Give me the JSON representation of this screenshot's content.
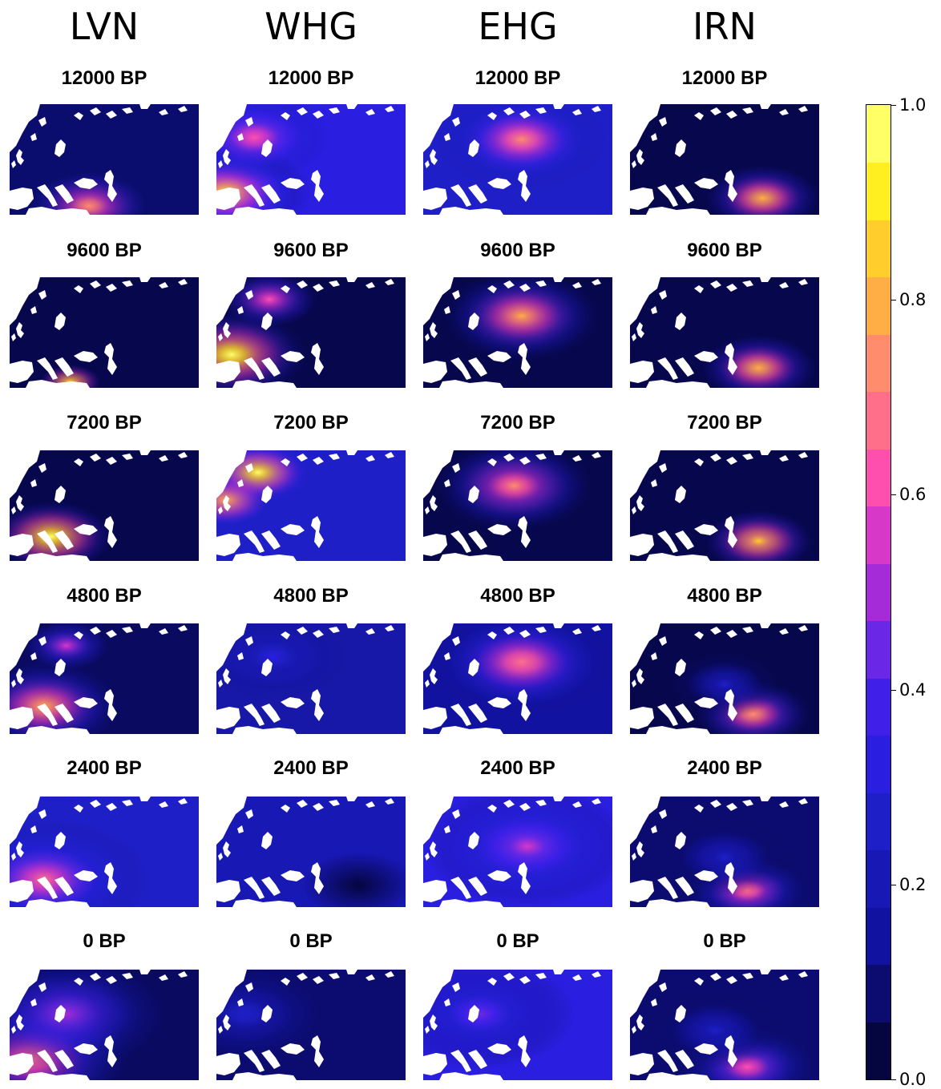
{
  "columns": [
    {
      "label": "LVN",
      "panels": [
        {
          "title": "12000 BP",
          "base": "#0b0d6e",
          "blobs": [
            [
              0.42,
              0.92,
              0.3,
              0.72,
              0.6
            ]
          ]
        },
        {
          "title": "9600 BP",
          "base": "#07074d",
          "blobs": [
            [
              0.32,
              0.95,
              0.16,
              0.9,
              0.55
            ]
          ]
        },
        {
          "title": "7200 BP",
          "base": "#07074d",
          "blobs": [
            [
              0.22,
              0.78,
              0.32,
              0.96,
              0.75
            ]
          ]
        },
        {
          "title": "4800 BP",
          "base": "#0a0a60",
          "blobs": [
            [
              0.18,
              0.75,
              0.42,
              0.78,
              0.85
            ],
            [
              0.3,
              0.2,
              0.22,
              0.55,
              0.55
            ]
          ]
        },
        {
          "title": "2400 BP",
          "base": "#1f1fc8",
          "blobs": [
            [
              0.18,
              0.75,
              0.55,
              0.65,
              0.95
            ]
          ]
        },
        {
          "title": "0 BP",
          "base": "#0a0a60",
          "blobs": [
            [
              0.12,
              0.8,
              0.55,
              0.7,
              0.95
            ],
            [
              0.3,
              0.4,
              0.55,
              0.5,
              0.8
            ]
          ]
        }
      ]
    },
    {
      "label": "WHG",
      "panels": [
        {
          "title": "12000 BP",
          "base": "#2a1ee0",
          "blobs": [
            [
              0.05,
              0.8,
              0.45,
              0.92,
              1.1
            ],
            [
              0.2,
              0.3,
              0.4,
              0.62,
              0.8
            ]
          ]
        },
        {
          "title": "9600 BP",
          "base": "#07074d",
          "blobs": [
            [
              0.08,
              0.7,
              0.4,
              0.98,
              0.85
            ],
            [
              0.28,
              0.2,
              0.25,
              0.62,
              0.55
            ]
          ]
        },
        {
          "title": "7200 BP",
          "base": "#1f1fc8",
          "blobs": [
            [
              0.22,
              0.2,
              0.28,
              0.95,
              0.7
            ],
            [
              0.05,
              0.45,
              0.22,
              0.82,
              0.45
            ]
          ]
        },
        {
          "title": "4800 BP",
          "base": "#1818a8",
          "blobs": [
            [
              0.3,
              0.3,
              0.4,
              0.3,
              0.7
            ]
          ]
        },
        {
          "title": "2400 BP",
          "base": "#1818b5",
          "blobs": [
            [
              0.75,
              0.8,
              0.3,
              0.05,
              0.4
            ]
          ]
        },
        {
          "title": "0 BP",
          "base": "#0c0c70",
          "blobs": [
            [
              0.15,
              0.4,
              0.4,
              0.28,
              0.6
            ]
          ]
        }
      ]
    },
    {
      "label": "EHG",
      "panels": [
        {
          "title": "12000 BP",
          "base": "#1f1fc8",
          "blobs": [
            [
              0.52,
              0.32,
              0.45,
              0.72,
              0.9
            ]
          ]
        },
        {
          "title": "9600 BP",
          "base": "#07074d",
          "blobs": [
            [
              0.52,
              0.35,
              0.42,
              0.78,
              0.85
            ]
          ]
        },
        {
          "title": "7200 BP",
          "base": "#07074d",
          "blobs": [
            [
              0.48,
              0.32,
              0.42,
              0.72,
              0.85
            ]
          ]
        },
        {
          "title": "4800 BP",
          "base": "#1212a0",
          "blobs": [
            [
              0.52,
              0.35,
              0.48,
              0.7,
              0.9
            ]
          ]
        },
        {
          "title": "2400 BP",
          "base": "#2a1ee0",
          "blobs": [
            [
              0.55,
              0.45,
              0.55,
              0.55,
              0.95
            ]
          ]
        },
        {
          "title": "0 BP",
          "base": "#2a1ee0",
          "blobs": [
            [
              0.3,
              0.4,
              0.5,
              0.42,
              0.9
            ]
          ]
        }
      ]
    },
    {
      "label": "IRN",
      "panels": [
        {
          "title": "12000 BP",
          "base": "#07074d",
          "blobs": [
            [
              0.7,
              0.85,
              0.3,
              0.82,
              0.75
            ]
          ]
        },
        {
          "title": "9600 BP",
          "base": "#07074d",
          "blobs": [
            [
              0.68,
              0.82,
              0.3,
              0.82,
              0.75
            ]
          ]
        },
        {
          "title": "7200 BP",
          "base": "#07074d",
          "blobs": [
            [
              0.68,
              0.82,
              0.28,
              0.85,
              0.7
            ]
          ]
        },
        {
          "title": "4800 BP",
          "base": "#07074d",
          "blobs": [
            [
              0.65,
              0.82,
              0.3,
              0.75,
              0.75
            ],
            [
              0.5,
              0.55,
              0.3,
              0.25,
              0.8
            ]
          ]
        },
        {
          "title": "2400 BP",
          "base": "#0c0c70",
          "blobs": [
            [
              0.62,
              0.85,
              0.3,
              0.7,
              0.75
            ],
            [
              0.5,
              0.55,
              0.35,
              0.25,
              0.8
            ]
          ]
        },
        {
          "title": "0 BP",
          "base": "#0c0c70",
          "blobs": [
            [
              0.62,
              0.88,
              0.35,
              0.62,
              0.8
            ],
            [
              0.45,
              0.55,
              0.35,
              0.25,
              0.8
            ]
          ]
        }
      ]
    }
  ],
  "colorbar": {
    "ticks": [
      "1.0",
      "0.8",
      "0.6",
      "0.4",
      "0.2",
      "0.0"
    ],
    "colors": [
      "#050540",
      "#0c0c70",
      "#1212a0",
      "#1818b5",
      "#1f1fc8",
      "#2a1ee0",
      "#4020e8",
      "#6a28e6",
      "#a52ad8",
      "#d838c8",
      "#ff4fae",
      "#ff6f8a",
      "#ff8c6c",
      "#ffad44",
      "#ffcd2c",
      "#ffee20",
      "#ffff66"
    ]
  }
}
